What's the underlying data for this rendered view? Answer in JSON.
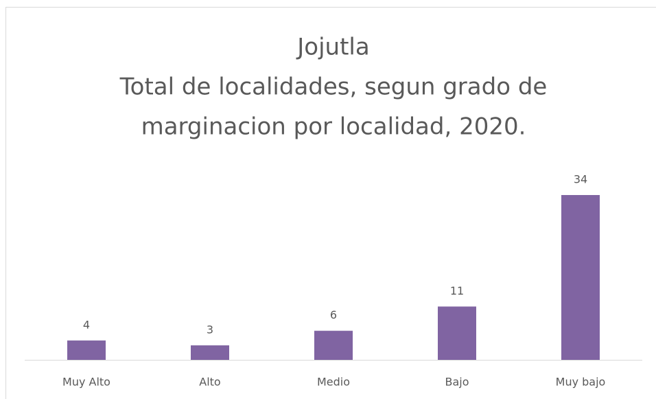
{
  "chart_data": {
    "type": "bar",
    "title": [
      "Jojutla",
      "Total de localidades, segun grado de",
      "marginacion por localidad, 2020."
    ],
    "categories": [
      "Muy Alto",
      "Alto",
      "Medio",
      "Bajo",
      "Muy bajo"
    ],
    "values": [
      4,
      3,
      6,
      11,
      34
    ],
    "color": "#8064a2"
  }
}
